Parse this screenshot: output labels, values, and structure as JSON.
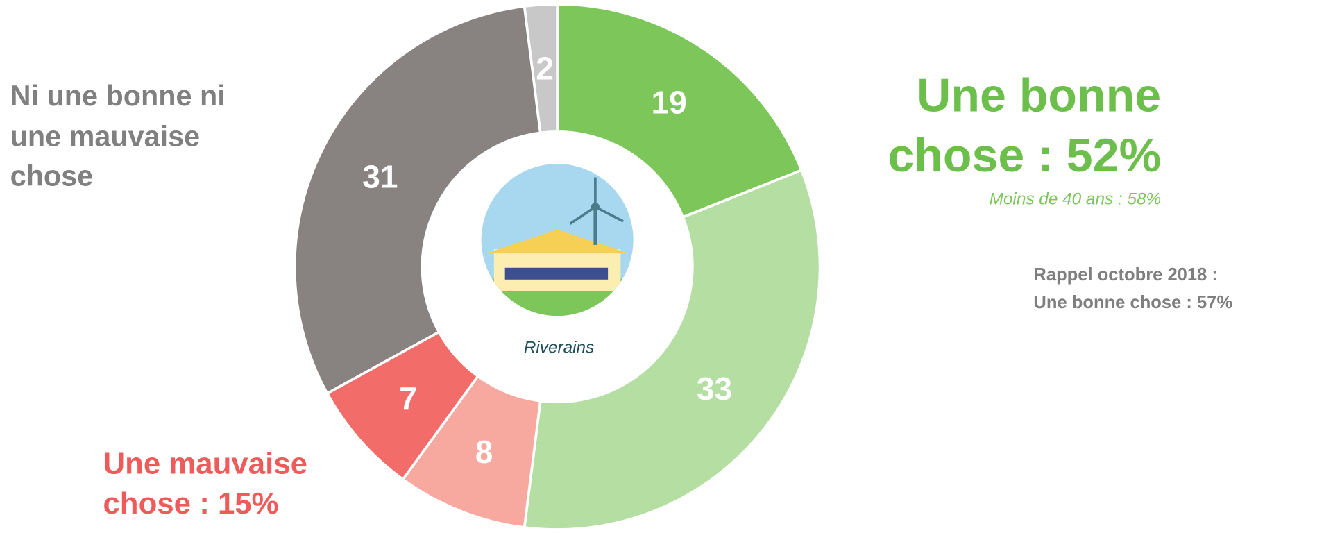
{
  "chart_data": {
    "type": "donut",
    "categories": [
      null,
      null,
      null,
      null,
      null,
      null
    ],
    "values": [
      19,
      33,
      8,
      7,
      31,
      2
    ],
    "colors": [
      "#7dc75a",
      "#b5dea3",
      "#f7a89f",
      "#f26d6a",
      "#888281",
      "#c8c8c8"
    ],
    "annotations": [
      {
        "lines": [
          "Ni une bonne ni",
          "une mauvaise",
          "chose"
        ]
      },
      {
        "lines": [
          "Une bonne",
          "chose : 52%"
        ]
      },
      {
        "lines": [
          "Moins de 40 ans : 58%"
        ]
      },
      {
        "lines": [
          "Rappel octobre 2018 :",
          "Une bonne chose : 57%"
        ]
      },
      {
        "lines": [
          "Une mauvaise",
          "chose : 15%"
        ]
      },
      {
        "lines": [
          "Riverains"
        ]
      }
    ]
  }
}
